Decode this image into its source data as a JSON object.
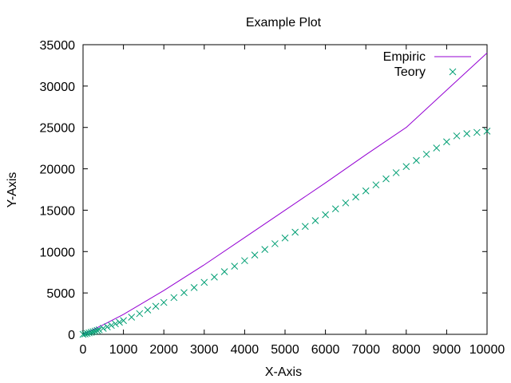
{
  "chart_data": {
    "type": "line",
    "title": "Example Plot",
    "xlabel": "X-Axis",
    "ylabel": "Y-Axis",
    "xlim": [
      0,
      10000
    ],
    "ylim": [
      0,
      35000
    ],
    "x_ticks": [
      0,
      1000,
      2000,
      3000,
      4000,
      5000,
      6000,
      7000,
      8000,
      9000,
      10000
    ],
    "y_ticks": [
      0,
      5000,
      10000,
      15000,
      20000,
      25000,
      30000,
      35000
    ],
    "grid": false,
    "legend_position": "top-right",
    "series": [
      {
        "name": "Empiric",
        "style": "line",
        "color": "#9400d3",
        "x": [
          0,
          500,
          1000,
          2000,
          3000,
          4000,
          5000,
          6000,
          7000,
          8000,
          9000,
          10000
        ],
        "y": [
          0,
          1150,
          2400,
          5300,
          8400,
          11700,
          15000,
          18300,
          21700,
          25000,
          29500,
          34000
        ]
      },
      {
        "name": "Teory",
        "style": "points",
        "marker": "x",
        "color": "#009e73",
        "x": [
          0,
          50,
          100,
          150,
          200,
          250,
          300,
          350,
          400,
          500,
          600,
          700,
          800,
          900,
          1000,
          1200,
          1400,
          1600,
          1800,
          2000,
          2250,
          2500,
          2750,
          3000,
          3250,
          3500,
          3750,
          4000,
          4250,
          4500,
          4750,
          5000,
          5250,
          5500,
          5750,
          6000,
          6250,
          6500,
          6750,
          7000,
          7250,
          7500,
          7750,
          8000,
          8250,
          8500,
          8750,
          9000,
          9250,
          9500,
          9750,
          10000
        ],
        "y": [
          0,
          50,
          110,
          175,
          240,
          310,
          390,
          470,
          550,
          720,
          900,
          1080,
          1270,
          1460,
          1660,
          2070,
          2500,
          2940,
          3390,
          3850,
          4440,
          5040,
          5650,
          6280,
          6920,
          7570,
          8230,
          8900,
          9580,
          10260,
          10950,
          11640,
          12340,
          13040,
          13740,
          14450,
          15160,
          15880,
          16600,
          17330,
          18060,
          18790,
          19530,
          20270,
          21010,
          21760,
          22510,
          23260,
          23980,
          24250,
          24400,
          24550
        ]
      }
    ]
  }
}
